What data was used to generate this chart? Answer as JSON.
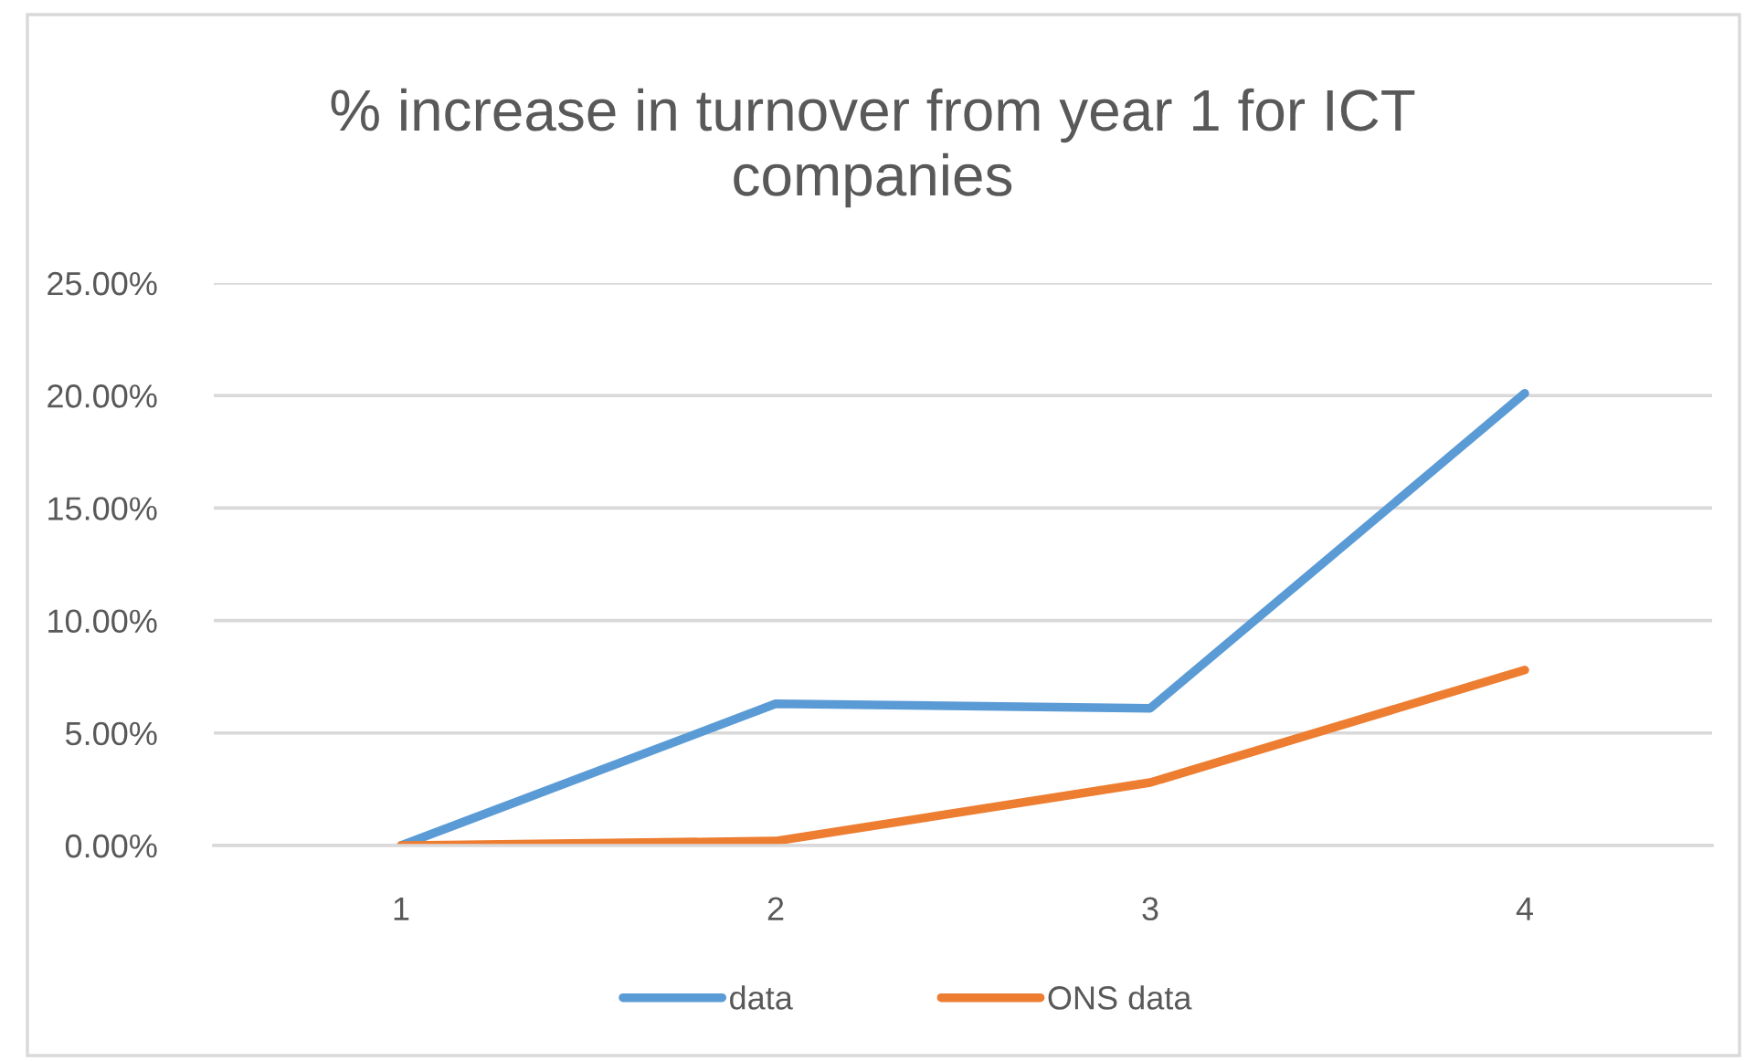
{
  "chart_data": {
    "type": "line",
    "title": "% increase in turnover from year 1 for ICT companies",
    "categories": [
      "1",
      "2",
      "3",
      "4"
    ],
    "series": [
      {
        "name": "data",
        "color": "#5b9bd5",
        "values": [
          0,
          6.3,
          6.1,
          20.1
        ]
      },
      {
        "name": "ONS data",
        "color": "#ed7d31",
        "values": [
          0,
          0.2,
          2.8,
          7.8
        ]
      }
    ],
    "ylim": [
      0,
      25
    ],
    "yticks": [
      {
        "value": 0,
        "label": "0.00%"
      },
      {
        "value": 5,
        "label": "5.00%"
      },
      {
        "value": 10,
        "label": "10.00%"
      },
      {
        "value": 15,
        "label": "15.00%"
      },
      {
        "value": 20,
        "label": "20.00%"
      },
      {
        "value": 25,
        "label": "25.00%"
      }
    ],
    "grid": "y",
    "legend": "bottom",
    "line_style": "solid"
  }
}
